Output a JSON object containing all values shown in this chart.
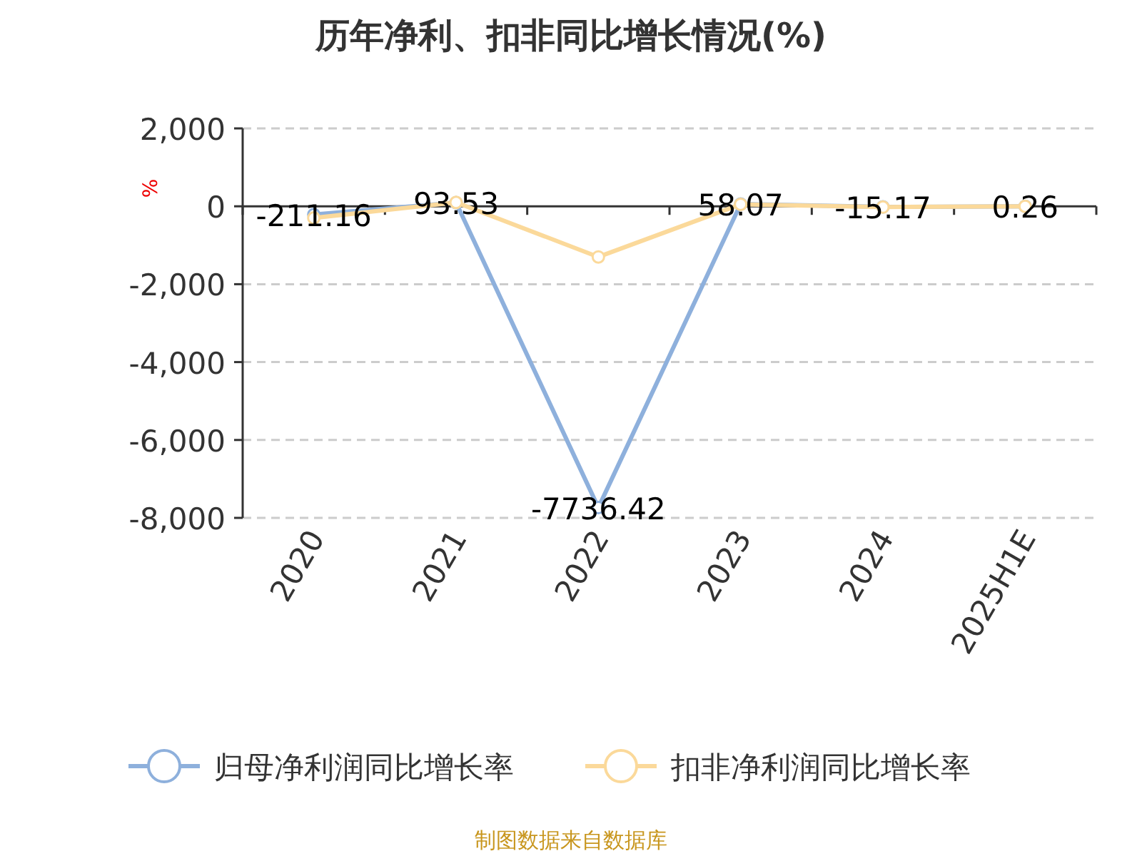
{
  "chart_data": {
    "type": "line",
    "title": "历年净利、扣非同比增长情况(%)",
    "ylabel": "%",
    "categories": [
      "2020",
      "2021",
      "2022",
      "2023",
      "2024",
      "2025H1E"
    ],
    "series": [
      {
        "name": "归母净利润同比增长率",
        "color": "#8eb0dc",
        "values": [
          -211.16,
          93.53,
          -7736.42,
          58.07,
          -15.17,
          0.26
        ],
        "value_labels": [
          "-211.16",
          "93.53",
          "-7736.42",
          "58.07",
          "-15.17",
          "0.26"
        ]
      },
      {
        "name": "扣非净利润同比增长率",
        "color": "#fbd99a",
        "values": [
          -300,
          100,
          -1300,
          50,
          -20,
          0
        ]
      }
    ],
    "ylim": [
      -8000,
      2000
    ],
    "yticks": [
      {
        "value": -8000,
        "label": "-8,000"
      },
      {
        "value": -6000,
        "label": "-6,000"
      },
      {
        "value": -4000,
        "label": "-4,000"
      },
      {
        "value": -2000,
        "label": "-2,000"
      },
      0,
      {
        "value": 2000,
        "label": "2,000"
      }
    ],
    "grid": "y",
    "legend": "bottom",
    "marker": "circle",
    "line_style": "solid",
    "annotations": [
      "制图数据来自数据库"
    ]
  }
}
